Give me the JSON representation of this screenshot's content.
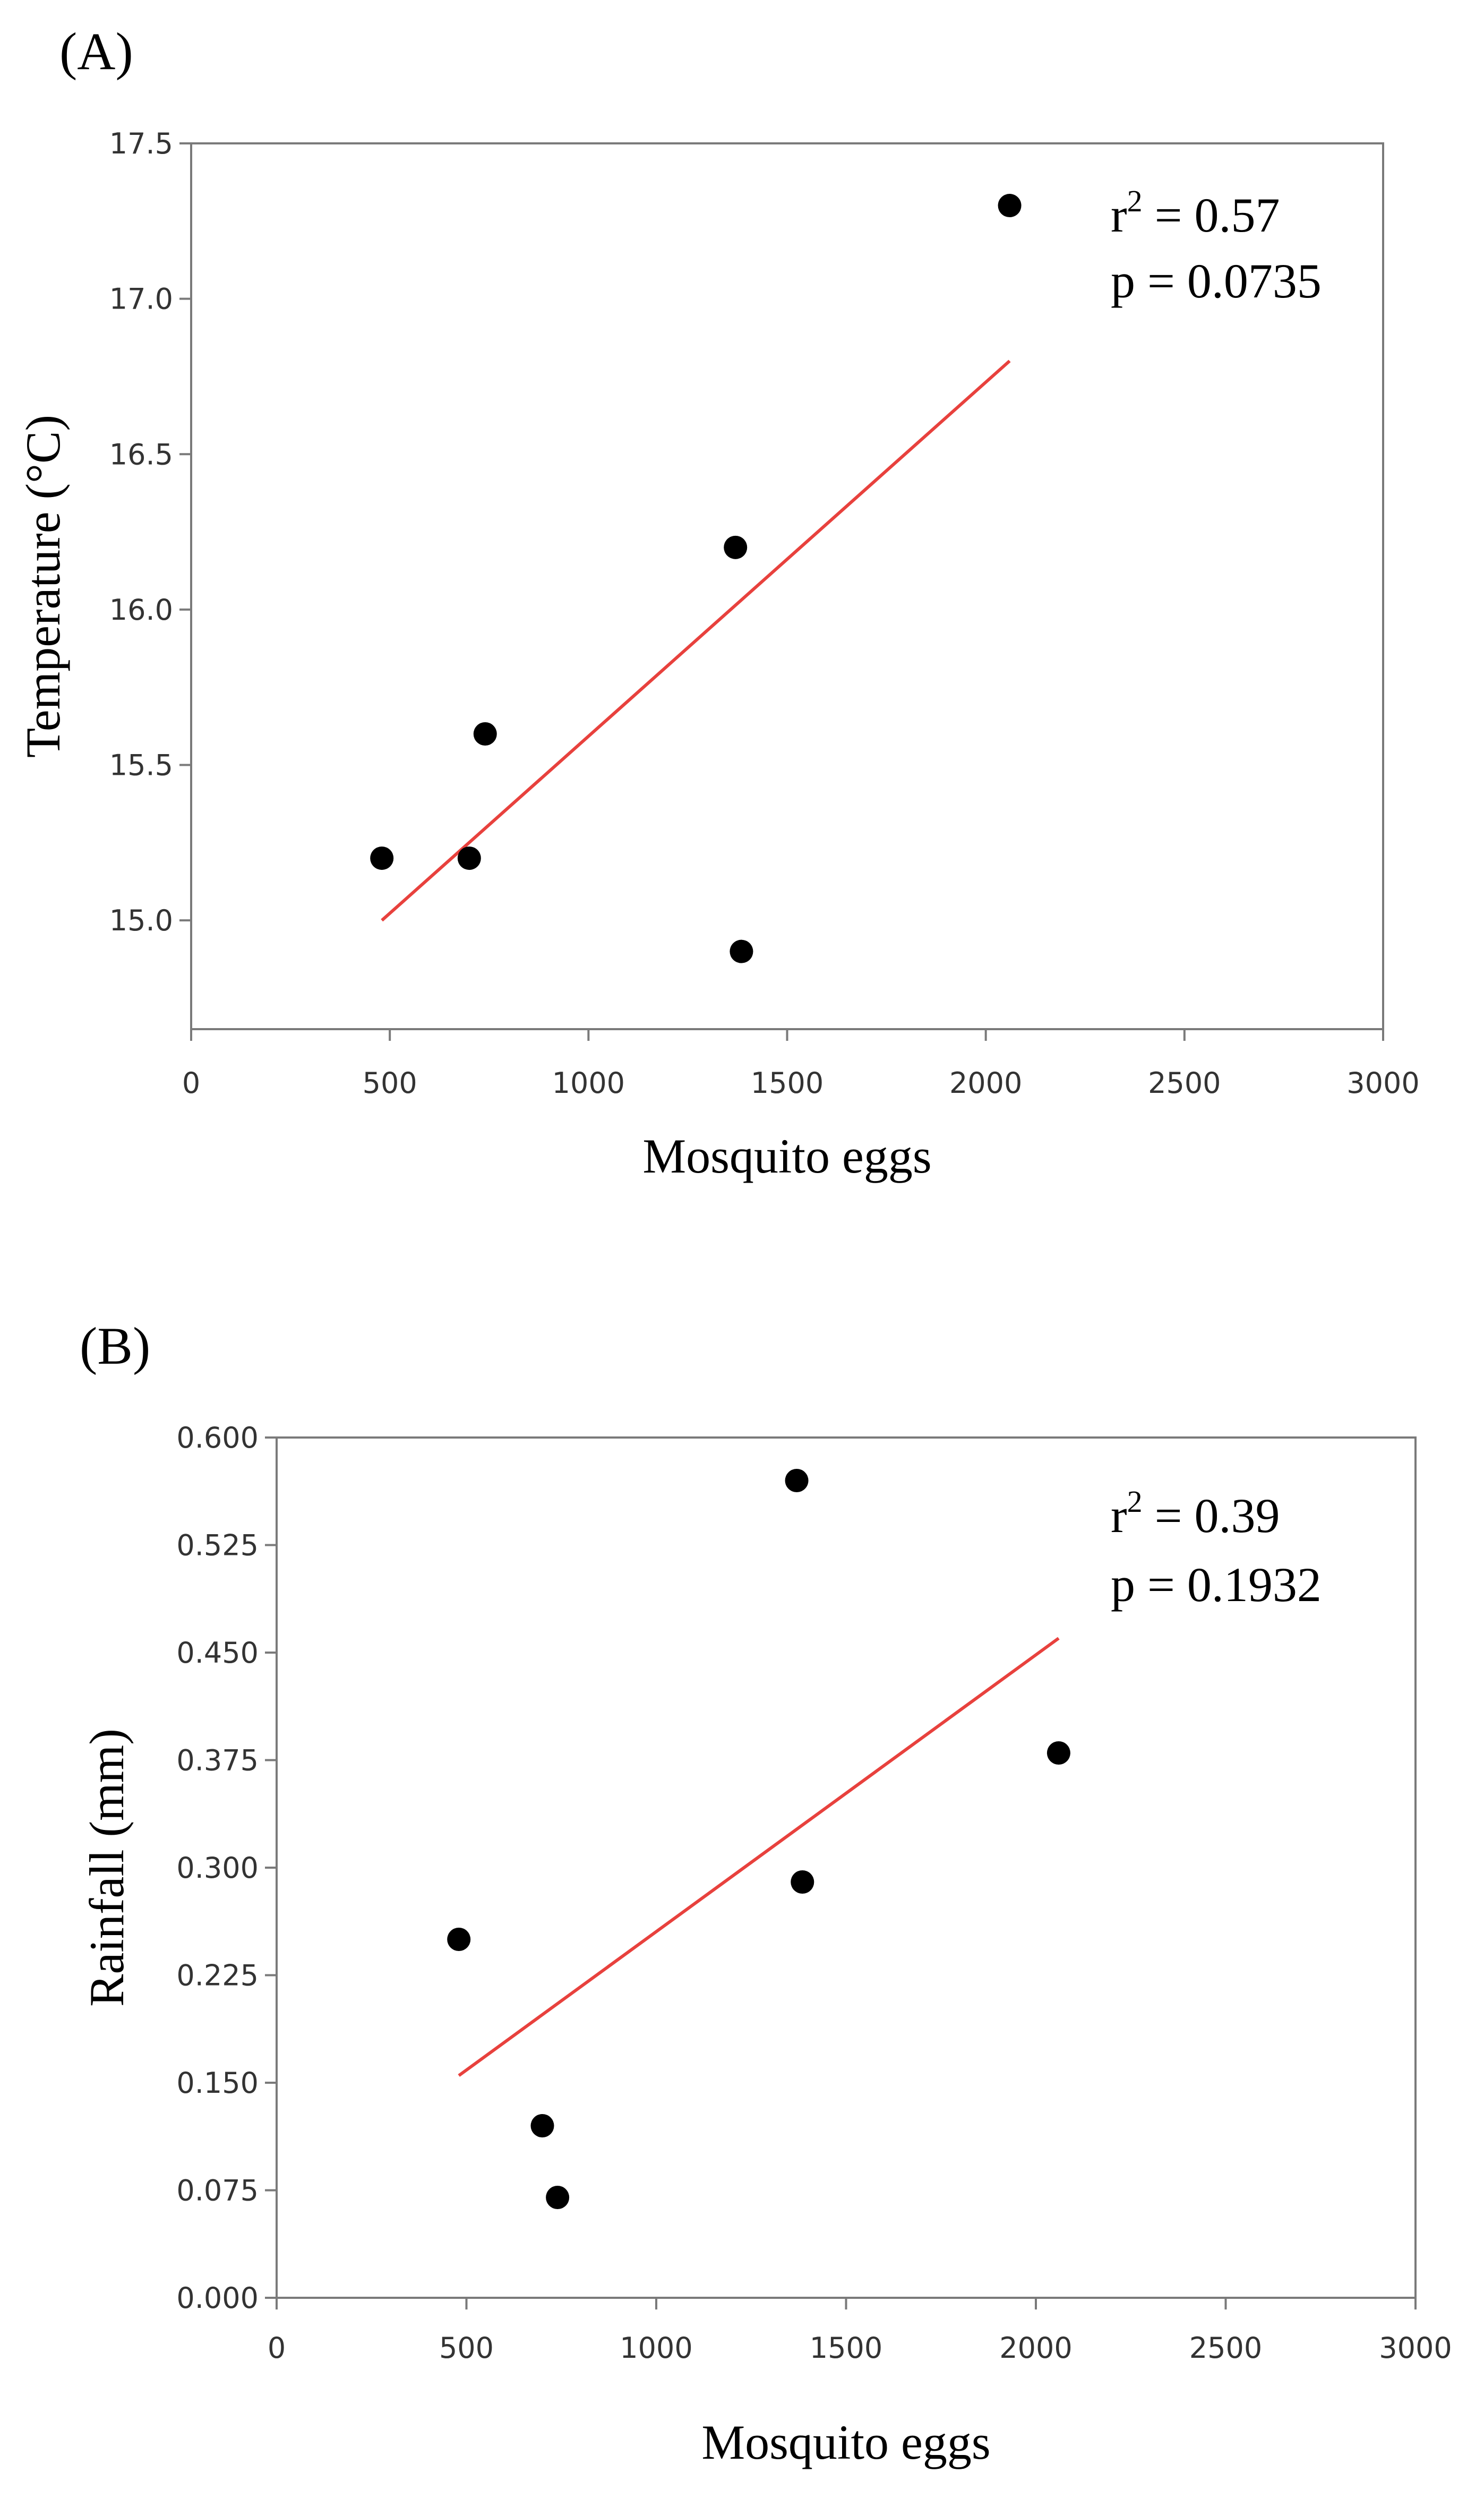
{
  "chart_data": [
    {
      "type": "scatter",
      "panel_label": "(A)",
      "xlabel": "Mosquito eggs",
      "ylabel": "Temperature (°C)",
      "xlim": [
        0,
        3000
      ],
      "ylim": [
        14.65,
        17.5
      ],
      "x_ticks": [
        0,
        500,
        1000,
        1500,
        2000,
        2500,
        3000
      ],
      "y_ticks": [
        15.0,
        15.5,
        16.0,
        16.5,
        17.0,
        17.5
      ],
      "y_tick_labels": [
        "15.0",
        "15.5",
        "16.0",
        "16.5",
        "17.0",
        "17.5"
      ],
      "x_tick_labels": [
        "0",
        "500",
        "1000",
        "1500",
        "2000",
        "2500",
        "3000"
      ],
      "points": {
        "x": [
          480,
          700,
          740,
          1370,
          1385,
          2060
        ],
        "y": [
          15.2,
          15.2,
          15.6,
          16.2,
          14.9,
          17.3
        ]
      },
      "fit_line": {
        "x": [
          480,
          2060
        ],
        "y": [
          15.0,
          16.8
        ],
        "color": "#e8413d"
      },
      "annotation": {
        "r_label": "r",
        "r_exp": "2",
        "r_value": " = 0.57",
        "p_text": "p = 0.0735"
      },
      "grid": false
    },
    {
      "type": "scatter",
      "panel_label": "(B)",
      "xlabel": "Mosquito eggs",
      "ylabel": "Rainfall (mm)",
      "xlim": [
        0,
        3000
      ],
      "ylim": [
        0.0,
        0.6
      ],
      "x_ticks": [
        0,
        500,
        1000,
        1500,
        2000,
        2500,
        3000
      ],
      "y_ticks": [
        0.0,
        0.075,
        0.15,
        0.225,
        0.3,
        0.375,
        0.45,
        0.525,
        0.6
      ],
      "y_tick_labels": [
        "0.000",
        "0.075",
        "0.150",
        "0.225",
        "0.300",
        "0.375",
        "0.450",
        "0.525",
        "0.600"
      ],
      "x_tick_labels": [
        "0",
        "500",
        "1000",
        "1500",
        "2000",
        "2500",
        "3000"
      ],
      "points": {
        "x": [
          480,
          700,
          740,
          1370,
          1385,
          2060
        ],
        "y": [
          0.25,
          0.12,
          0.07,
          0.57,
          0.29,
          0.38
        ]
      },
      "fit_line": {
        "x": [
          480,
          2060
        ],
        "y": [
          0.155,
          0.46
        ],
        "color": "#e8413d"
      },
      "annotation": {
        "r_label": "r",
        "r_exp": "2",
        "r_value": " = 0.39",
        "p_text": "p = 0.1932"
      },
      "grid": false
    }
  ]
}
